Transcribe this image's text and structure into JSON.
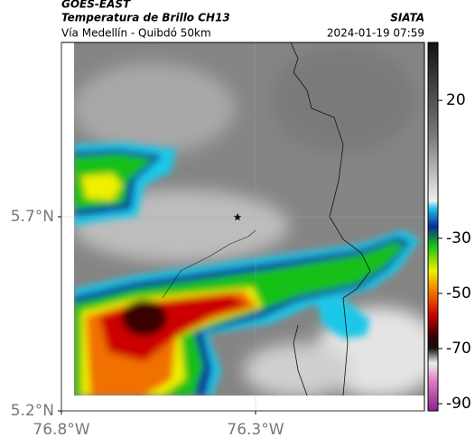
{
  "header": {
    "source": "GOES-EAST",
    "title": "Temperatura de Brillo CH13",
    "brand": "SIATA",
    "route": "Vía Medellín - Quibdó 50km",
    "timestamp": "2024-01-19 07:59"
  },
  "map": {
    "lonlim": [
      -76.8,
      -75.865
    ],
    "latlim": [
      5.2,
      6.149
    ],
    "xticks": [
      {
        "value": -76.8,
        "label": "76.8°W"
      },
      {
        "value": -76.3,
        "label": "76.3°W"
      }
    ],
    "yticks": [
      {
        "value": 5.2,
        "label": "5.2°N"
      },
      {
        "value": 5.7,
        "label": "5.7°N"
      }
    ]
  },
  "colorbar": {
    "lim": [
      -92.6,
      41
    ],
    "ticks": [
      20,
      -30,
      -50,
      -70,
      -90
    ]
  }
}
